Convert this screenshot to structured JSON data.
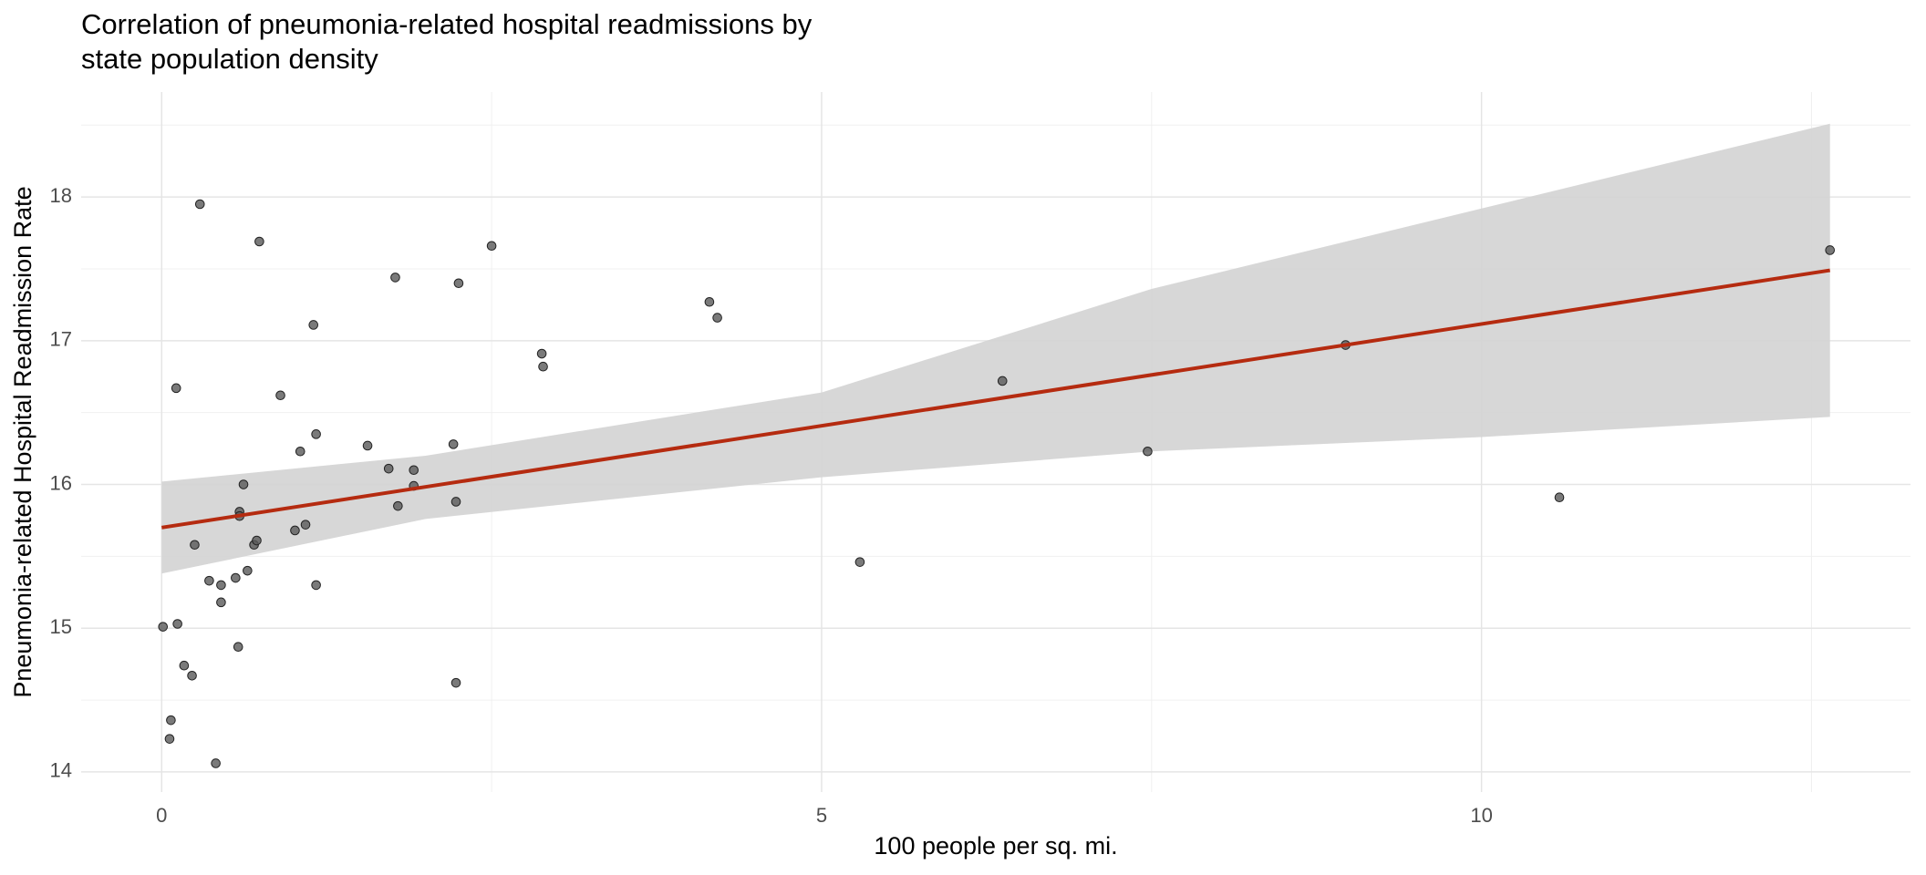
{
  "chart_data": {
    "type": "scatter",
    "title": [
      "Correlation of pneumonia-related hospital readmissions by",
      "state population density"
    ],
    "x_label": "100 people per sq. mi.",
    "y_label": "Pneumonia-related Hospital Readmission Rate",
    "xlim": [
      -0.61,
      13.25
    ],
    "ylim": [
      13.86,
      18.73
    ],
    "xticks": [
      0,
      5,
      10
    ],
    "yticks": [
      14,
      15,
      16,
      17,
      18
    ],
    "xminor": [
      2.5,
      7.5,
      12.5
    ],
    "yminor": [
      14.5,
      15.5,
      16.5,
      17.5,
      18.5
    ],
    "grid": true,
    "point_color": "#595959",
    "x": [
      0.01,
      0.07,
      0.06,
      0.11,
      0.12,
      0.17,
      0.23,
      0.25,
      0.29,
      0.36,
      0.41,
      0.45,
      0.45,
      0.56,
      0.58,
      0.59,
      0.59,
      0.62,
      0.65,
      0.7,
      0.72,
      0.74,
      0.9,
      1.01,
      1.05,
      1.09,
      1.15,
      1.17,
      1.17,
      1.56,
      1.72,
      1.77,
      1.79,
      1.91,
      1.91,
      2.21,
      2.23,
      2.23,
      2.25,
      2.5,
      2.88,
      2.89,
      4.15,
      4.21,
      5.29,
      6.37,
      7.47,
      8.97,
      10.59,
      12.64
    ],
    "values": [
      15.01,
      14.36,
      14.23,
      16.67,
      15.03,
      14.74,
      14.67,
      15.58,
      17.95,
      15.33,
      14.06,
      15.3,
      15.18,
      15.35,
      14.87,
      15.81,
      15.78,
      16.0,
      15.4,
      15.58,
      15.61,
      17.69,
      16.62,
      15.68,
      16.23,
      15.72,
      17.11,
      16.35,
      15.3,
      16.27,
      16.11,
      17.44,
      15.85,
      16.1,
      15.99,
      16.28,
      15.88,
      14.62,
      17.4,
      17.66,
      16.91,
      16.82,
      17.27,
      17.16,
      15.46,
      16.72,
      16.23,
      16.97,
      15.91,
      17.63
    ],
    "fit": {
      "color": "#b52b10",
      "x": [
        0,
        12.64
      ],
      "values": [
        15.7,
        17.49
      ]
    },
    "band": {
      "color": "#d3d3d3",
      "x": [
        0,
        2,
        5,
        7.5,
        10,
        12.64
      ],
      "lower": [
        15.38,
        15.76,
        16.05,
        16.23,
        16.33,
        16.47
      ],
      "upper": [
        16.02,
        16.2,
        16.64,
        17.36,
        17.92,
        18.51
      ]
    }
  }
}
